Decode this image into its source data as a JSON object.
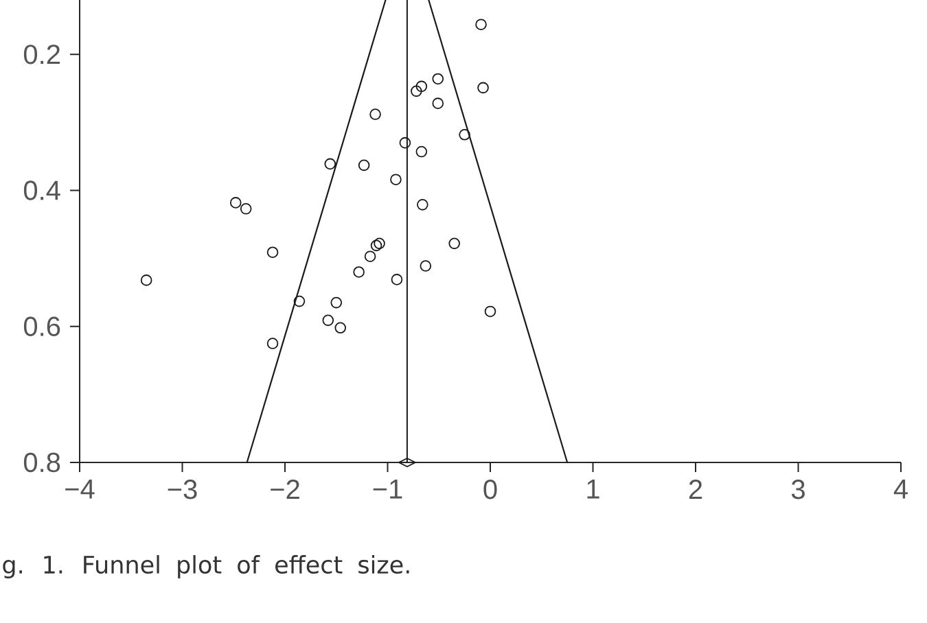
{
  "chart_data": {
    "type": "scatter",
    "series": [
      {
        "type": "scatter",
        "marker": "circle",
        "color": "#1a1a1a",
        "x": [
          -0.09,
          -0.07,
          -0.25,
          -0.35,
          0.0,
          -0.51,
          -0.51,
          -0.72,
          -0.67,
          -1.12,
          -0.83,
          -0.67,
          -1.56,
          -1.23,
          -0.92,
          -2.48,
          -2.38,
          -0.66,
          -2.12,
          -1.11,
          -1.08,
          -1.17,
          -1.28,
          -0.63,
          -0.91,
          -3.35,
          -1.86,
          -1.5,
          -1.58,
          -1.46,
          -2.12
        ],
        "values": [
          0.156,
          0.249,
          0.318,
          0.478,
          0.578,
          0.236,
          0.272,
          0.254,
          0.247,
          0.288,
          0.33,
          0.343,
          0.361,
          0.363,
          0.384,
          0.418,
          0.427,
          0.421,
          0.491,
          0.481,
          0.478,
          0.497,
          0.52,
          0.511,
          0.531,
          0.532,
          0.563,
          0.565,
          0.591,
          0.602,
          0.625
        ]
      },
      {
        "type": "line",
        "color": "#1a1a1a",
        "x": [
          -2.37,
          -1.02
        ],
        "values": [
          0.8,
          0.12
        ]
      },
      {
        "type": "line",
        "color": "#1a1a1a",
        "x": [
          0.75,
          -0.6
        ],
        "values": [
          0.8,
          0.12
        ]
      },
      {
        "type": "scatter",
        "marker": "diamond",
        "color": "#1a1a1a",
        "x": [
          -0.81
        ],
        "values": [
          0.8
        ]
      }
    ],
    "xlim": [
      -4,
      4
    ],
    "ylim": [
      0.8,
      0.12
    ],
    "xticks": [
      {
        "value": -4,
        "label": "−4"
      },
      {
        "value": -3,
        "label": "−3"
      },
      {
        "value": -2,
        "label": "−2"
      },
      {
        "value": -1,
        "label": "−1"
      },
      0,
      1,
      2,
      3,
      4
    ],
    "yticks": [
      0.2,
      0.4,
      0.6,
      0.8
    ],
    "ref_lines": [
      {
        "axis": "x",
        "value": -0.81,
        "color": "#1a1a1a"
      }
    ],
    "annotations": [
      "g. 1. Funnel plot of effect size."
    ]
  }
}
